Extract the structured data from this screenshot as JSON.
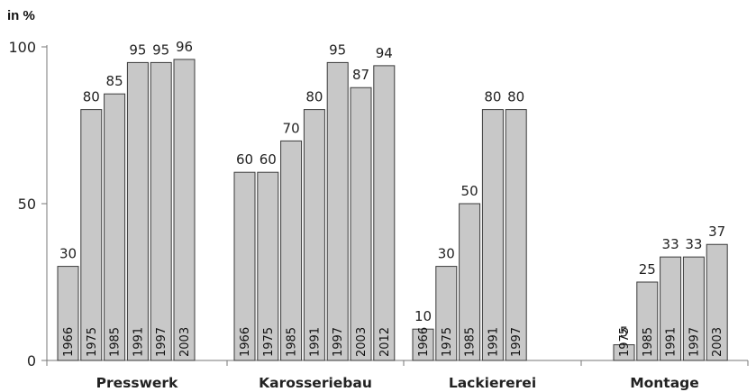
{
  "chart_data": {
    "type": "bar",
    "ylabel": "in %",
    "ylim": [
      0,
      100
    ],
    "yticks": [
      0,
      50,
      100
    ],
    "grid": false,
    "groups": [
      {
        "name": "Presswerk",
        "bars": [
          {
            "year": "1966",
            "value": 30
          },
          {
            "year": "1975",
            "value": 80
          },
          {
            "year": "1985",
            "value": 85
          },
          {
            "year": "1991",
            "value": 95
          },
          {
            "year": "1997",
            "value": 95
          },
          {
            "year": "2003",
            "value": 96
          }
        ]
      },
      {
        "name": "Karosseriebau",
        "bars": [
          {
            "year": "1966",
            "value": 60
          },
          {
            "year": "1975",
            "value": 60
          },
          {
            "year": "1985",
            "value": 70
          },
          {
            "year": "1991",
            "value": 80
          },
          {
            "year": "1997",
            "value": 95
          },
          {
            "year": "2003",
            "value": 87
          },
          {
            "year": "2012",
            "value": 94
          }
        ]
      },
      {
        "name": "Lackiererei",
        "bars": [
          {
            "year": "1966",
            "value": 10
          },
          {
            "year": "1975",
            "value": 30
          },
          {
            "year": "1985",
            "value": 50
          },
          {
            "year": "1991",
            "value": 80
          },
          {
            "year": "1997",
            "value": 80
          }
        ]
      },
      {
        "name": "Montage",
        "bars": [
          {
            "year": "1975",
            "value": 5
          },
          {
            "year": "1985",
            "value": 25
          },
          {
            "year": "1991",
            "value": 33
          },
          {
            "year": "1997",
            "value": 33
          },
          {
            "year": "2003",
            "value": 37
          }
        ]
      }
    ]
  }
}
